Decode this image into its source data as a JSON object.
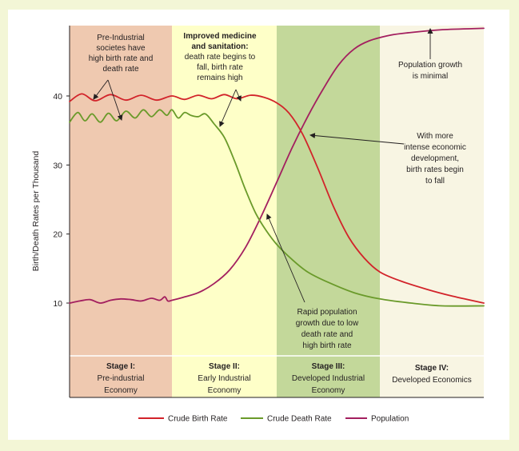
{
  "chart_data": {
    "type": "line",
    "title": "",
    "xlabel": "",
    "ylabel": "Birth/Death Rates per Thousand",
    "ylim": [
      2,
      50
    ],
    "yticks": [
      10,
      20,
      30,
      40
    ],
    "x_range": [
      0,
      4
    ],
    "stages": [
      {
        "title": "Stage I:",
        "lines": [
          "Pre-industrial",
          "Economy"
        ],
        "color": "#efc9b0"
      },
      {
        "title": "Stage II:",
        "lines": [
          "Early Industrial",
          "Economy"
        ],
        "color": "#feffc8"
      },
      {
        "title": "Stage III:",
        "lines": [
          "Developed Industrial",
          "Economy"
        ],
        "color": "#c3d89a"
      },
      {
        "title": "Stage IV:",
        "lines": [
          "Developed Economics"
        ],
        "color": "#f8f5e3"
      }
    ],
    "series": [
      {
        "name": "Crude Birth Rate",
        "color": "#d2232a",
        "points": [
          [
            0,
            39.2
          ],
          [
            0.12,
            40.3
          ],
          [
            0.25,
            39.3
          ],
          [
            0.4,
            40.2
          ],
          [
            0.55,
            39.4
          ],
          [
            0.7,
            40.1
          ],
          [
            0.85,
            39.4
          ],
          [
            1.0,
            40.0
          ],
          [
            1.12,
            39.5
          ],
          [
            1.25,
            40.1
          ],
          [
            1.38,
            39.6
          ],
          [
            1.5,
            40.2
          ],
          [
            1.62,
            39.6
          ],
          [
            1.75,
            40.1
          ],
          [
            1.88,
            39.8
          ],
          [
            2.0,
            39.0
          ],
          [
            2.12,
            37.5
          ],
          [
            2.25,
            34.5
          ],
          [
            2.4,
            29.5
          ],
          [
            2.55,
            24.0
          ],
          [
            2.7,
            19.5
          ],
          [
            2.85,
            16.5
          ],
          [
            3.0,
            14.5
          ],
          [
            3.2,
            13.2
          ],
          [
            3.45,
            12.0
          ],
          [
            3.7,
            11.0
          ],
          [
            4.0,
            10.0
          ]
        ]
      },
      {
        "name": "Crude Death Rate",
        "color": "#6a9a2a",
        "points": [
          [
            0,
            36.2
          ],
          [
            0.08,
            37.6
          ],
          [
            0.15,
            36.4
          ],
          [
            0.22,
            37.4
          ],
          [
            0.3,
            36.2
          ],
          [
            0.38,
            37.5
          ],
          [
            0.46,
            36.4
          ],
          [
            0.55,
            37.8
          ],
          [
            0.64,
            36.8
          ],
          [
            0.72,
            38.0
          ],
          [
            0.8,
            37.0
          ],
          [
            0.88,
            38.0
          ],
          [
            0.95,
            37.2
          ],
          [
            1.0,
            38.0
          ],
          [
            1.06,
            36.8
          ],
          [
            1.12,
            37.6
          ],
          [
            1.18,
            37.2
          ],
          [
            1.25,
            37.0
          ],
          [
            1.32,
            37.4
          ],
          [
            1.4,
            36.0
          ],
          [
            1.5,
            34.0
          ],
          [
            1.6,
            30.5
          ],
          [
            1.7,
            26.5
          ],
          [
            1.8,
            23.0
          ],
          [
            1.9,
            20.5
          ],
          [
            2.0,
            18.5
          ],
          [
            2.15,
            16.3
          ],
          [
            2.3,
            14.5
          ],
          [
            2.5,
            13.0
          ],
          [
            2.75,
            11.5
          ],
          [
            3.0,
            10.6
          ],
          [
            3.3,
            10.0
          ],
          [
            3.6,
            9.6
          ],
          [
            4.0,
            9.6
          ]
        ]
      },
      {
        "name": "Population",
        "color": "#a31f5f",
        "points": [
          [
            0,
            10.0
          ],
          [
            0.1,
            10.3
          ],
          [
            0.2,
            10.5
          ],
          [
            0.3,
            10.0
          ],
          [
            0.4,
            10.4
          ],
          [
            0.5,
            10.6
          ],
          [
            0.6,
            10.5
          ],
          [
            0.7,
            10.3
          ],
          [
            0.8,
            10.7
          ],
          [
            0.88,
            10.4
          ],
          [
            0.93,
            10.9
          ],
          [
            0.96,
            10.3
          ],
          [
            1.0,
            10.4
          ],
          [
            1.1,
            10.8
          ],
          [
            1.25,
            11.5
          ],
          [
            1.4,
            12.8
          ],
          [
            1.55,
            14.8
          ],
          [
            1.7,
            18.0
          ],
          [
            1.85,
            22.5
          ],
          [
            2.0,
            27.5
          ],
          [
            2.15,
            32.5
          ],
          [
            2.3,
            37.0
          ],
          [
            2.45,
            41.0
          ],
          [
            2.6,
            44.5
          ],
          [
            2.75,
            46.8
          ],
          [
            2.9,
            48.0
          ],
          [
            3.1,
            48.8
          ],
          [
            3.3,
            49.2
          ],
          [
            3.6,
            49.6
          ],
          [
            4.0,
            49.8
          ]
        ]
      }
    ],
    "annotations": [
      {
        "id": "preindustrial",
        "lines": [
          [
            "Pre-Industrial",
            false
          ],
          [
            "societes have",
            false
          ],
          [
            "high birth rate and",
            false
          ],
          [
            "death rate",
            false
          ]
        ]
      },
      {
        "id": "medicine",
        "lines": [
          [
            "Improved medicine",
            true
          ],
          [
            "and sanitation:",
            true
          ],
          [
            "death rate begins to",
            false
          ],
          [
            "fall, birth rate",
            false
          ],
          [
            "remains high",
            false
          ]
        ]
      },
      {
        "id": "popmin",
        "lines": [
          [
            "Population growth",
            false
          ],
          [
            "is minimal",
            false
          ]
        ]
      },
      {
        "id": "economic",
        "lines": [
          [
            "With more",
            false
          ],
          [
            "intense economic",
            false
          ],
          [
            "development,",
            false
          ],
          [
            "birth rates begin",
            false
          ],
          [
            "to fall",
            false
          ]
        ]
      },
      {
        "id": "rapid",
        "lines": [
          [
            "Rapid population",
            false
          ],
          [
            "growth due to low",
            false
          ],
          [
            "death rate and",
            false
          ],
          [
            "high birth rate",
            false
          ]
        ]
      }
    ],
    "legend_position": "bottom"
  }
}
